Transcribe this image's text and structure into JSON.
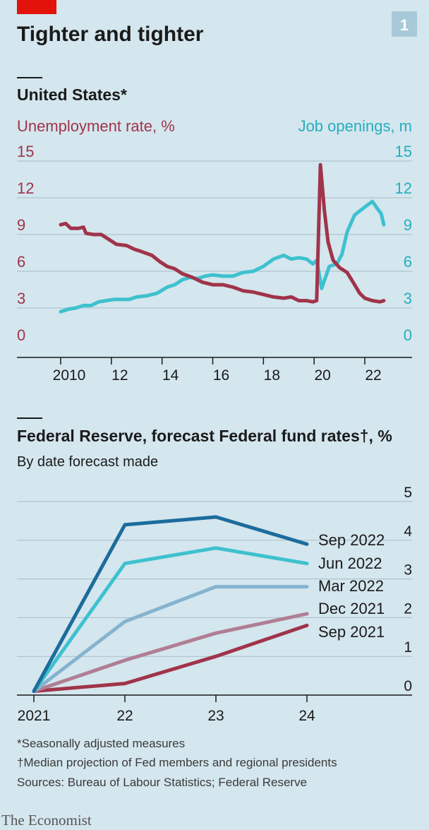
{
  "header": {
    "title": "Tighter and tighter",
    "badge": "1",
    "accent_color": "#e3120b"
  },
  "chart_data": [
    {
      "type": "line",
      "title": "United States*",
      "x": [
        2010,
        2012,
        2014,
        2016,
        2018,
        2020,
        2022
      ],
      "x_tick_labels": [
        "2010",
        "12",
        "14",
        "16",
        "18",
        "20",
        "22"
      ],
      "xlim": [
        2009.0,
        2023.5
      ],
      "ylabel_left": "Unemployment rate, %",
      "ylabel_right": "Job openings, m",
      "ylim_left": [
        0,
        15
      ],
      "ylim_right": [
        0,
        15
      ],
      "y_ticks": [
        "0",
        "3",
        "6",
        "9",
        "12",
        "15"
      ],
      "grid": true,
      "series": [
        {
          "name": "Unemployment rate, %",
          "axis": "left",
          "color": "#a0344a",
          "points": [
            [
              2010.0,
              9.8
            ],
            [
              2010.2,
              9.9
            ],
            [
              2010.4,
              9.5
            ],
            [
              2010.7,
              9.5
            ],
            [
              2010.9,
              9.6
            ],
            [
              2011.0,
              9.1
            ],
            [
              2011.3,
              9.0
            ],
            [
              2011.6,
              9.0
            ],
            [
              2011.9,
              8.6
            ],
            [
              2012.2,
              8.2
            ],
            [
              2012.6,
              8.1
            ],
            [
              2012.9,
              7.8
            ],
            [
              2013.2,
              7.6
            ],
            [
              2013.6,
              7.3
            ],
            [
              2013.9,
              6.8
            ],
            [
              2014.2,
              6.4
            ],
            [
              2014.5,
              6.2
            ],
            [
              2014.8,
              5.8
            ],
            [
              2015.2,
              5.5
            ],
            [
              2015.6,
              5.1
            ],
            [
              2016.0,
              4.9
            ],
            [
              2016.4,
              4.9
            ],
            [
              2016.8,
              4.7
            ],
            [
              2017.2,
              4.4
            ],
            [
              2017.6,
              4.3
            ],
            [
              2018.0,
              4.1
            ],
            [
              2018.4,
              3.9
            ],
            [
              2018.8,
              3.8
            ],
            [
              2019.1,
              3.9
            ],
            [
              2019.4,
              3.6
            ],
            [
              2019.7,
              3.6
            ],
            [
              2019.95,
              3.5
            ],
            [
              2020.1,
              3.6
            ],
            [
              2020.25,
              14.7
            ],
            [
              2020.4,
              11.1
            ],
            [
              2020.55,
              8.4
            ],
            [
              2020.75,
              6.9
            ],
            [
              2021.0,
              6.3
            ],
            [
              2021.3,
              5.9
            ],
            [
              2021.6,
              4.9
            ],
            [
              2021.8,
              4.2
            ],
            [
              2022.0,
              3.8
            ],
            [
              2022.3,
              3.6
            ],
            [
              2022.6,
              3.5
            ],
            [
              2022.75,
              3.6
            ]
          ]
        },
        {
          "name": "Job openings, m",
          "axis": "right",
          "color": "#3ec1cf",
          "points": [
            [
              2010.0,
              2.7
            ],
            [
              2010.3,
              2.9
            ],
            [
              2010.6,
              3.0
            ],
            [
              2010.9,
              3.2
            ],
            [
              2011.2,
              3.2
            ],
            [
              2011.5,
              3.5
            ],
            [
              2011.8,
              3.6
            ],
            [
              2012.1,
              3.7
            ],
            [
              2012.4,
              3.7
            ],
            [
              2012.7,
              3.7
            ],
            [
              2013.0,
              3.9
            ],
            [
              2013.4,
              4.0
            ],
            [
              2013.8,
              4.2
            ],
            [
              2014.2,
              4.7
            ],
            [
              2014.5,
              4.9
            ],
            [
              2014.8,
              5.3
            ],
            [
              2015.1,
              5.5
            ],
            [
              2015.4,
              5.4
            ],
            [
              2015.7,
              5.6
            ],
            [
              2016.0,
              5.7
            ],
            [
              2016.4,
              5.6
            ],
            [
              2016.8,
              5.6
            ],
            [
              2017.2,
              5.9
            ],
            [
              2017.6,
              6.0
            ],
            [
              2018.0,
              6.4
            ],
            [
              2018.4,
              7.0
            ],
            [
              2018.8,
              7.3
            ],
            [
              2019.1,
              7.0
            ],
            [
              2019.4,
              7.1
            ],
            [
              2019.7,
              7.0
            ],
            [
              2019.95,
              6.6
            ],
            [
              2020.1,
              6.9
            ],
            [
              2020.3,
              4.6
            ],
            [
              2020.45,
              5.5
            ],
            [
              2020.6,
              6.4
            ],
            [
              2020.9,
              6.6
            ],
            [
              2021.1,
              7.4
            ],
            [
              2021.3,
              9.2
            ],
            [
              2021.6,
              10.6
            ],
            [
              2021.85,
              11.0
            ],
            [
              2022.1,
              11.4
            ],
            [
              2022.3,
              11.7
            ],
            [
              2022.5,
              11.1
            ],
            [
              2022.65,
              10.7
            ],
            [
              2022.75,
              9.8
            ]
          ]
        }
      ]
    },
    {
      "type": "line",
      "title": "Federal Reserve, forecast Federal fund rates†, %",
      "subtitle": "By date forecast made",
      "categories": [
        "2021",
        "22",
        "23",
        "24"
      ],
      "ylim": [
        0,
        5
      ],
      "y_ticks": [
        "0",
        "1",
        "2",
        "3",
        "4",
        "5"
      ],
      "grid": true,
      "series": [
        {
          "name": "Sep 2022",
          "color": "#1c6c9c",
          "values": [
            0.1,
            4.4,
            4.6,
            3.9
          ]
        },
        {
          "name": "Jun 2022",
          "color": "#3ec1cf",
          "values": [
            0.1,
            3.4,
            3.8,
            3.4
          ]
        },
        {
          "name": "Mar 2022",
          "color": "#85b3cf",
          "values": [
            0.1,
            1.9,
            2.8,
            2.8
          ]
        },
        {
          "name": "Dec 2021",
          "color": "#b07e94",
          "values": [
            0.1,
            0.9,
            1.6,
            2.1
          ]
        },
        {
          "name": "Sep 2021",
          "color": "#a0344a",
          "values": [
            0.1,
            0.3,
            1.0,
            1.8
          ]
        }
      ]
    }
  ],
  "footnotes": [
    "*Seasonally adjusted measures",
    "†Median projection of Fed members and regional presidents",
    "Sources: Bureau of Labour Statistics; Federal Reserve"
  ],
  "brand": "The Economist",
  "colors": {
    "background": "#d4e6ee",
    "grid": "#a9bcc6",
    "axis": "#1a1a1a",
    "unemployment_text": "#a0344a",
    "openings_text": "#26aebf"
  }
}
